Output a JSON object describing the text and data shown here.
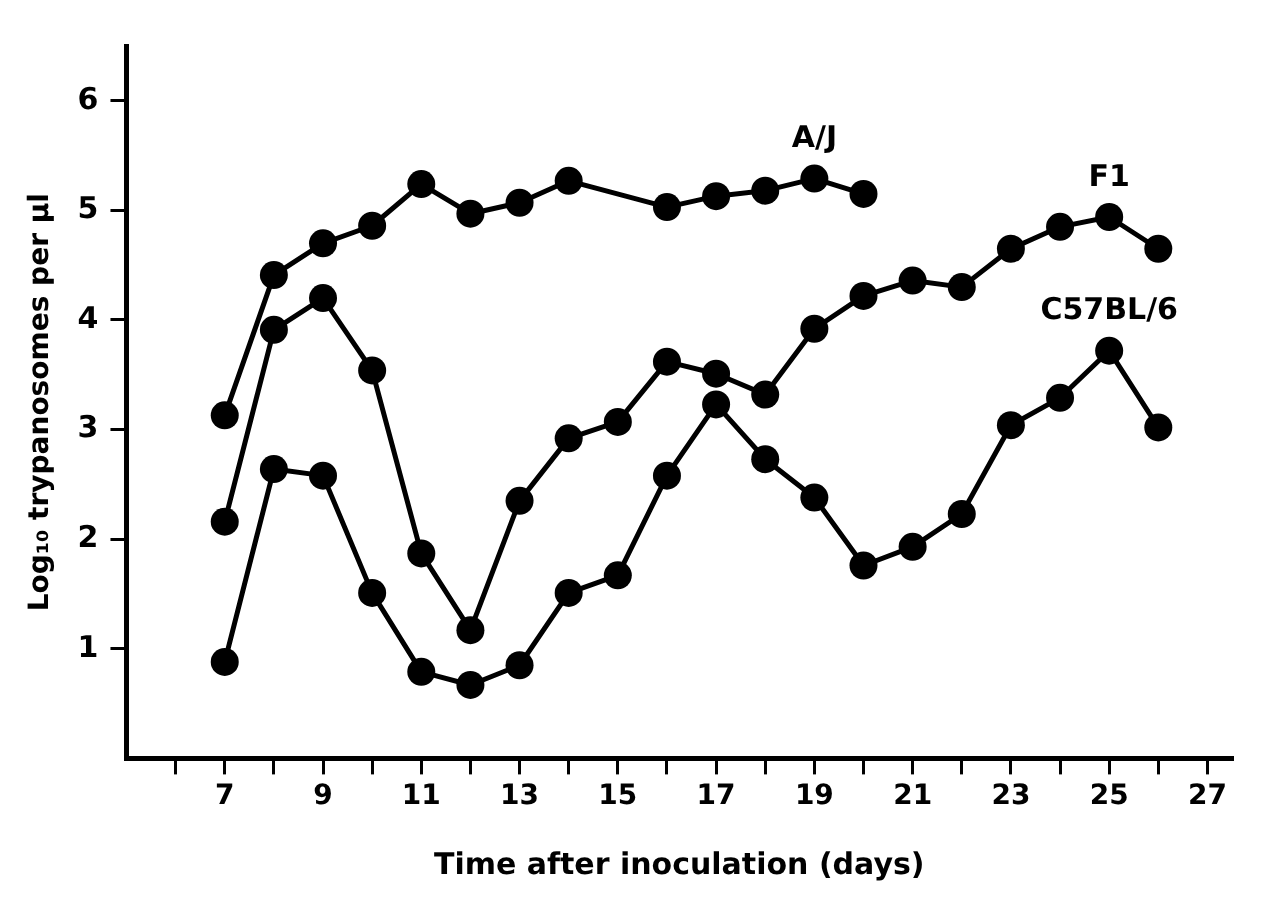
{
  "chart_data": {
    "type": "line",
    "xlabel": "Time after inoculation (days)",
    "ylabel": "Log₁₀ trypanosomes per μl",
    "xlim": [
      5,
      27.5
    ],
    "ylim": [
      0,
      6.5
    ],
    "xticks": [
      {
        "value": 6,
        "label": null
      },
      7,
      {
        "value": 8,
        "label": null
      },
      9,
      {
        "value": 10,
        "label": null
      },
      11,
      {
        "value": 12,
        "label": null
      },
      13,
      {
        "value": 14,
        "label": null
      },
      15,
      {
        "value": 16,
        "label": null
      },
      17,
      {
        "value": 18,
        "label": null
      },
      19,
      {
        "value": 20,
        "label": null
      },
      21,
      {
        "value": 22,
        "label": null
      },
      23,
      {
        "value": 24,
        "label": null
      },
      25,
      {
        "value": 26,
        "label": null
      },
      27
    ],
    "yticks": [
      1,
      2,
      3,
      4,
      5,
      6
    ],
    "grid": false,
    "legend": false,
    "marker": "circle",
    "line_style": "solid",
    "series": [
      {
        "name": "A/J",
        "color": "#000000",
        "x": [
          7,
          8,
          9,
          10,
          11,
          12,
          13,
          14,
          16,
          17,
          18,
          19,
          20
        ],
        "values": [
          3.13,
          4.41,
          4.7,
          4.86,
          5.24,
          4.97,
          5.07,
          5.27,
          5.03,
          5.13,
          5.18,
          5.29,
          5.15
        ]
      },
      {
        "name": "F1",
        "color": "#000000",
        "x": [
          7,
          8,
          9,
          10,
          11,
          12,
          13,
          14,
          15,
          16,
          17,
          18,
          19,
          20,
          21,
          22,
          23,
          24,
          25,
          26
        ],
        "values": [
          2.16,
          3.91,
          4.2,
          3.54,
          1.87,
          1.17,
          2.35,
          2.92,
          3.07,
          3.62,
          3.51,
          3.32,
          3.92,
          4.22,
          4.36,
          4.3,
          4.65,
          4.85,
          4.94,
          4.65
        ]
      },
      {
        "name": "C57BL/6",
        "color": "#000000",
        "x": [
          7,
          8,
          9,
          10,
          11,
          12,
          13,
          14,
          15,
          16,
          17,
          18,
          19,
          20,
          21,
          22,
          23,
          24,
          25,
          26
        ],
        "values": [
          0.88,
          2.64,
          2.58,
          1.51,
          0.79,
          0.67,
          0.85,
          1.51,
          1.67,
          2.58,
          3.23,
          2.73,
          2.38,
          1.76,
          1.93,
          2.23,
          3.04,
          3.29,
          3.72,
          3.02
        ]
      }
    ]
  }
}
